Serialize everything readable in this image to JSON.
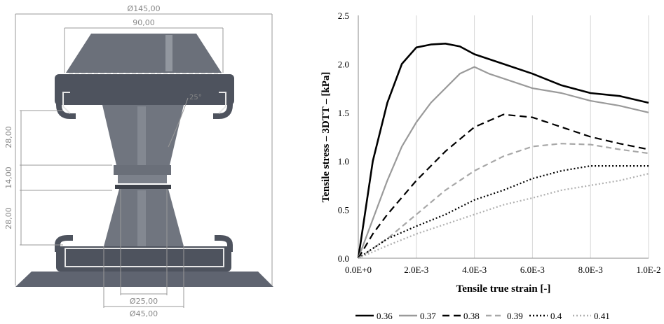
{
  "drawing": {
    "dim_overall_diameter": "Ø145,00",
    "dim_top_width": "90,00",
    "dim_angle": "25°",
    "dim_height_upper": "28,00",
    "dim_height_middle": "14,00",
    "dim_height_lower": "28,00",
    "dim_neck_diameter": "Ø25,00",
    "dim_base_diameter": "Ø45,00"
  },
  "chart_data": {
    "type": "line",
    "title": "",
    "xlabel": "Tensile true strain [-]",
    "ylabel": "Tensile stress – 3DTT – [kPa]",
    "xlim": [
      0,
      0.01
    ],
    "ylim": [
      0,
      2.5
    ],
    "x_ticks": [
      "0.0E+0",
      "2.0E-3",
      "4.0E-3",
      "6.0E-3",
      "8.0E-3",
      "1.0E-2"
    ],
    "y_ticks": [
      "0.0",
      "0.5",
      "1.0",
      "1.5",
      "2.0",
      "2.5"
    ],
    "grid": "vertical",
    "legend_position": "bottom",
    "series": [
      {
        "name": "0.36",
        "color": "#000000",
        "dash": "solid",
        "points": [
          [
            0,
            0
          ],
          [
            0.0002,
            0.4
          ],
          [
            0.0005,
            1.0
          ],
          [
            0.001,
            1.6
          ],
          [
            0.0015,
            2.0
          ],
          [
            0.002,
            2.17
          ],
          [
            0.0025,
            2.2
          ],
          [
            0.003,
            2.21
          ],
          [
            0.0035,
            2.18
          ],
          [
            0.004,
            2.1
          ],
          [
            0.005,
            2.0
          ],
          [
            0.006,
            1.9
          ],
          [
            0.007,
            1.78
          ],
          [
            0.008,
            1.7
          ],
          [
            0.009,
            1.67
          ],
          [
            0.01,
            1.6
          ]
        ]
      },
      {
        "name": "0.37",
        "color": "#9a9a9a",
        "dash": "solid",
        "points": [
          [
            0,
            0
          ],
          [
            0.0005,
            0.4
          ],
          [
            0.001,
            0.8
          ],
          [
            0.0015,
            1.15
          ],
          [
            0.002,
            1.4
          ],
          [
            0.0025,
            1.6
          ],
          [
            0.003,
            1.75
          ],
          [
            0.0035,
            1.9
          ],
          [
            0.004,
            1.97
          ],
          [
            0.0045,
            1.9
          ],
          [
            0.005,
            1.85
          ],
          [
            0.006,
            1.75
          ],
          [
            0.007,
            1.7
          ],
          [
            0.008,
            1.62
          ],
          [
            0.009,
            1.57
          ],
          [
            0.01,
            1.5
          ]
        ]
      },
      {
        "name": "0.38",
        "color": "#000000",
        "dash": "long-dash",
        "points": [
          [
            0,
            0
          ],
          [
            0.0005,
            0.25
          ],
          [
            0.001,
            0.45
          ],
          [
            0.002,
            0.8
          ],
          [
            0.003,
            1.1
          ],
          [
            0.004,
            1.35
          ],
          [
            0.005,
            1.48
          ],
          [
            0.006,
            1.45
          ],
          [
            0.007,
            1.35
          ],
          [
            0.008,
            1.25
          ],
          [
            0.009,
            1.18
          ],
          [
            0.01,
            1.12
          ]
        ]
      },
      {
        "name": "0.39",
        "color": "#a8a8a8",
        "dash": "dash",
        "points": [
          [
            0,
            0
          ],
          [
            0.001,
            0.2
          ],
          [
            0.002,
            0.45
          ],
          [
            0.003,
            0.7
          ],
          [
            0.004,
            0.9
          ],
          [
            0.005,
            1.05
          ],
          [
            0.006,
            1.15
          ],
          [
            0.007,
            1.18
          ],
          [
            0.008,
            1.17
          ],
          [
            0.009,
            1.12
          ],
          [
            0.01,
            1.08
          ]
        ]
      },
      {
        "name": "0.4",
        "color": "#000000",
        "dash": "dot",
        "points": [
          [
            0,
            0
          ],
          [
            0.001,
            0.2
          ],
          [
            0.002,
            0.33
          ],
          [
            0.003,
            0.45
          ],
          [
            0.004,
            0.6
          ],
          [
            0.005,
            0.7
          ],
          [
            0.006,
            0.82
          ],
          [
            0.007,
            0.9
          ],
          [
            0.008,
            0.95
          ],
          [
            0.009,
            0.95
          ],
          [
            0.01,
            0.95
          ]
        ]
      },
      {
        "name": "0.41",
        "color": "#b0b0b0",
        "dash": "dot",
        "points": [
          [
            0,
            0
          ],
          [
            0.001,
            0.13
          ],
          [
            0.002,
            0.25
          ],
          [
            0.003,
            0.35
          ],
          [
            0.004,
            0.45
          ],
          [
            0.005,
            0.55
          ],
          [
            0.006,
            0.62
          ],
          [
            0.007,
            0.7
          ],
          [
            0.008,
            0.75
          ],
          [
            0.009,
            0.8
          ],
          [
            0.01,
            0.87
          ]
        ]
      }
    ]
  }
}
